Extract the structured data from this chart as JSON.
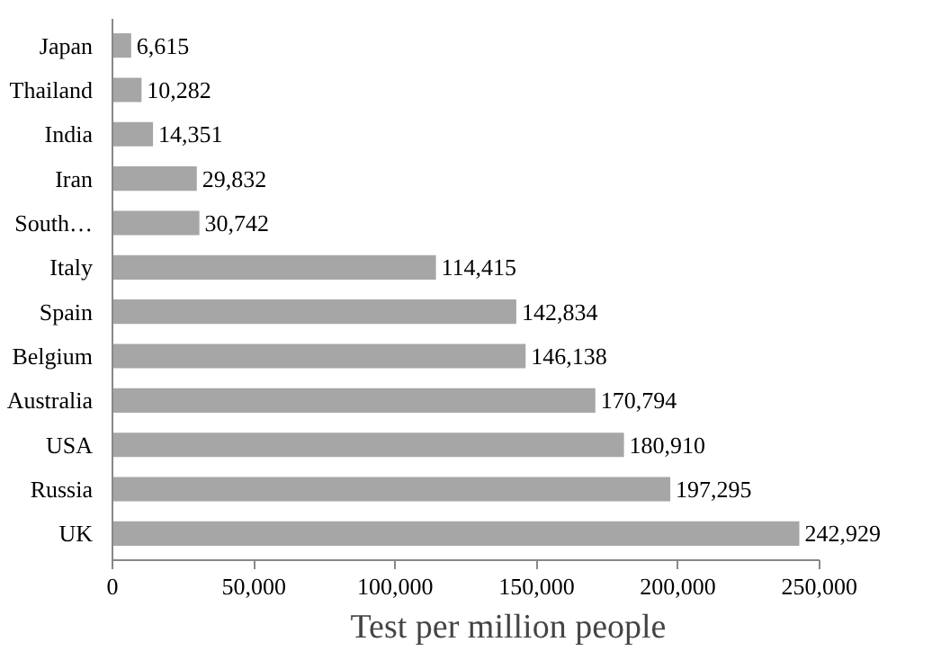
{
  "chart_data": {
    "type": "bar",
    "orientation": "horizontal",
    "xlabel": "Test per million people",
    "categories": [
      "Japan",
      "Thailand",
      "India",
      "Iran",
      "South…",
      "Italy",
      "Spain",
      "Belgium",
      "Australia",
      "USA",
      "Russia",
      "UK"
    ],
    "values": [
      6615,
      10282,
      14351,
      29832,
      30742,
      114415,
      142834,
      146138,
      170794,
      180910,
      197295,
      242929
    ],
    "value_labels": [
      "6,615",
      "10,282",
      "14,351",
      "29,832",
      "30,742",
      "114,415",
      "142,834",
      "146,138",
      "170,794",
      "180,910",
      "197,295",
      "242,929"
    ],
    "color": "#a6a6a6",
    "xlim": [
      0,
      250000
    ],
    "xticks": [
      0,
      {
        "value": 50000,
        "label": "50,000"
      },
      {
        "value": 100000,
        "label": "100,000"
      },
      {
        "value": 150000,
        "label": "150,000"
      },
      {
        "value": 200000,
        "label": "200,000"
      },
      {
        "value": 250000,
        "label": "250,000"
      }
    ],
    "grid": false
  }
}
